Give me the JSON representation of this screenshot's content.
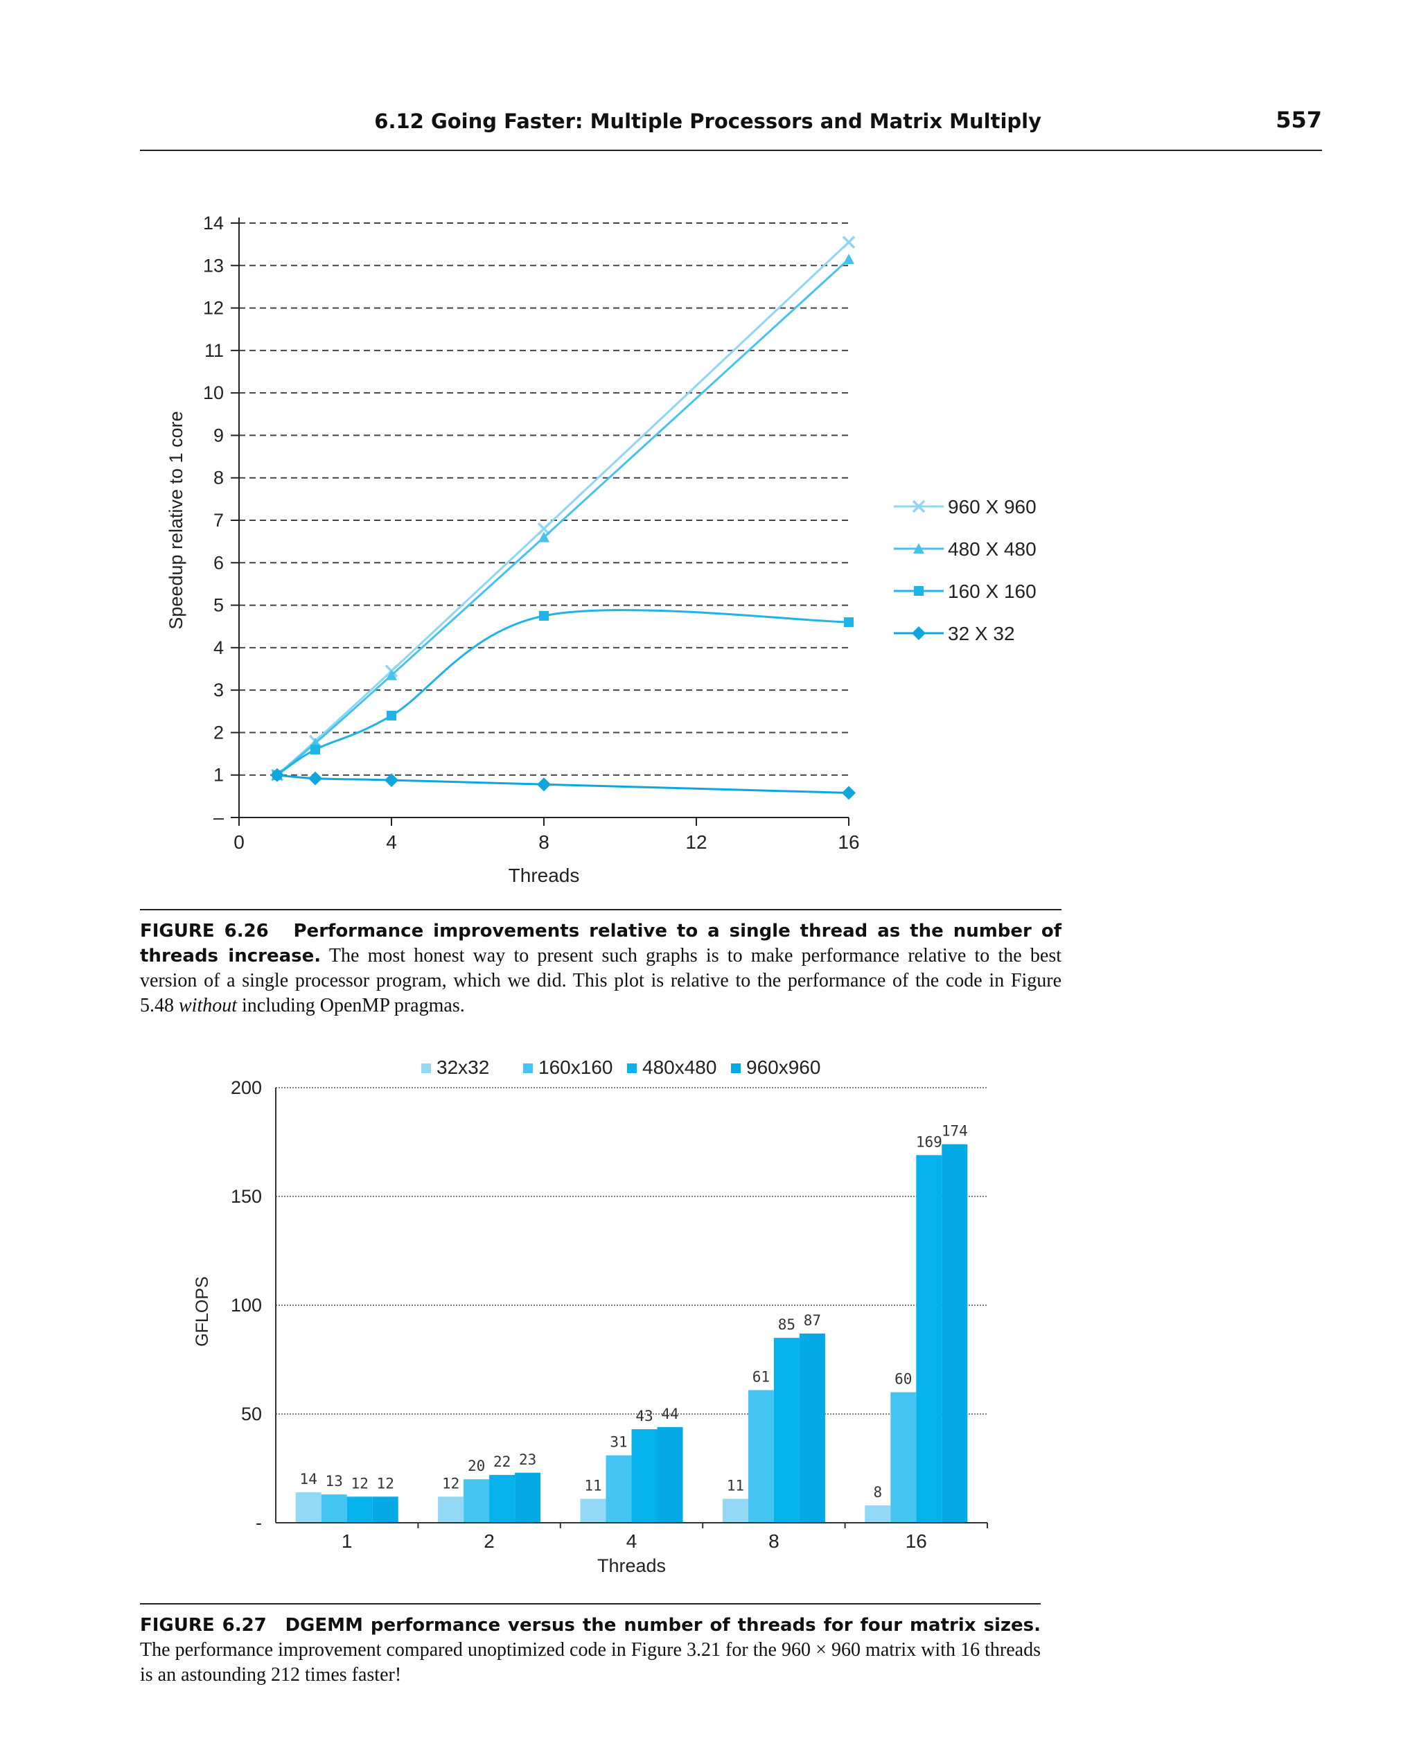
{
  "header": {
    "section": "6.12  Going Faster:  Multiple Processors and Matrix Multiply",
    "page_number": "557"
  },
  "colors": {
    "s960": "#8ed6f2",
    "s480": "#45c2ee",
    "s160": "#1fb3e6",
    "s32": "#0fa6df",
    "bar32": "#93d9f6",
    "bar160": "#44c4f1",
    "bar480": "#05b2ec",
    "bar960": "#04a9e6"
  },
  "chart_data": [
    {
      "type": "line",
      "title": "",
      "xlabel": "Threads",
      "ylabel": "Speedup relative to 1 core",
      "xlim": [
        0,
        16
      ],
      "ylim": [
        0,
        14
      ],
      "x_ticks": [
        "0",
        "4",
        "8",
        "12",
        "16"
      ],
      "y_ticks": [
        "–",
        "1",
        "2",
        "3",
        "4",
        "5",
        "6",
        "7",
        "8",
        "9",
        "10",
        "11",
        "12",
        "13",
        "14"
      ],
      "grid": "dashed horizontal",
      "legend_position": "right",
      "series": [
        {
          "name": "960 X 960",
          "marker": "x",
          "x": [
            1,
            2,
            4,
            8,
            16
          ],
          "y": [
            1.0,
            1.8,
            3.45,
            6.8,
            13.55
          ]
        },
        {
          "name": "480 X 480",
          "marker": "triangle",
          "x": [
            1,
            2,
            4,
            8,
            16
          ],
          "y": [
            1.0,
            1.75,
            3.35,
            6.6,
            13.15
          ]
        },
        {
          "name": "160 X 160",
          "marker": "square",
          "x": [
            1,
            2,
            4,
            8,
            16
          ],
          "y": [
            1.0,
            1.6,
            2.4,
            4.75,
            4.6
          ]
        },
        {
          "name": "32 X 32",
          "marker": "diamond",
          "x": [
            1,
            2,
            4,
            8,
            16
          ],
          "y": [
            1.0,
            0.92,
            0.88,
            0.78,
            0.58
          ]
        }
      ]
    },
    {
      "type": "bar",
      "title": "",
      "xlabel": "Threads",
      "ylabel": "GFLOPS",
      "categories": [
        "1",
        "2",
        "4",
        "8",
        "16"
      ],
      "ylim": [
        0,
        200
      ],
      "y_ticks": [
        "-",
        "50",
        "100",
        "150",
        "200"
      ],
      "grid": "dotted horizontal",
      "legend_position": "top",
      "series": [
        {
          "name": "32x32",
          "values": [
            14,
            12,
            11,
            11,
            8
          ]
        },
        {
          "name": "160x160",
          "values": [
            13,
            20,
            31,
            61,
            60
          ]
        },
        {
          "name": "480x480",
          "values": [
            12,
            22,
            43,
            85,
            169
          ]
        },
        {
          "name": "960x960",
          "values": [
            12,
            23,
            44,
            87,
            174
          ]
        }
      ]
    }
  ],
  "captions": {
    "fig26": {
      "label": "FIGURE 6.26",
      "bold": "Performance improvements relative to a single thread as the number of threads increase.",
      "text1": "The most honest way to present such graphs is to make performance relative to the best version of a single processor program, which we did. This plot is relative to the performance of the code in Figure 5.48",
      "italic": "without",
      "text2": "including OpenMP pragmas."
    },
    "fig27": {
      "label": "FIGURE 6.27",
      "bold": "DGEMM performance versus the number of threads for four matrix sizes.",
      "text": "The performance improvement compared unoptimized code in Figure 3.21 for the 960 × 960 matrix with 16 threads is an astounding 212 times faster!"
    }
  }
}
